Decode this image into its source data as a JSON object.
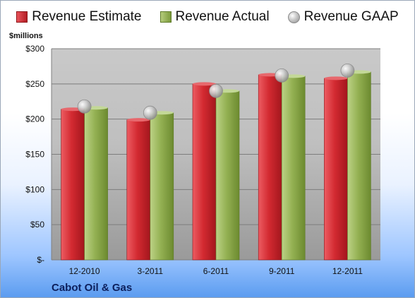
{
  "legend": {
    "estimate": "Revenue Estimate",
    "actual": "Revenue Actual",
    "gaap": "Revenue GAAP"
  },
  "unit_label": "$millions",
  "company": "Cabot Oil & Gas",
  "colors": {
    "estimate": "#c8252c",
    "actual": "#93b052",
    "gaap": "#b8b8b8"
  },
  "chart_data": {
    "type": "bar",
    "categories": [
      "12-2010",
      "3-2011",
      "6-2011",
      "9-2011",
      "12-2011"
    ],
    "series": [
      {
        "name": "Revenue Estimate",
        "values": [
          214,
          199,
          250,
          263,
          258
        ]
      },
      {
        "name": "Revenue Actual",
        "values": [
          216,
          209,
          240,
          261,
          267
        ]
      },
      {
        "name": "Revenue GAAP",
        "values": [
          218,
          209,
          240,
          262,
          269
        ]
      }
    ],
    "ylim": [
      0,
      300
    ],
    "yticks": [
      0,
      50,
      100,
      150,
      200,
      250,
      300
    ],
    "ytick_labels": [
      "$-",
      "$50",
      "$100",
      "$150",
      "$200",
      "$250",
      "$300"
    ],
    "ylabel": "$millions",
    "grid": true,
    "legend_position": "top"
  }
}
